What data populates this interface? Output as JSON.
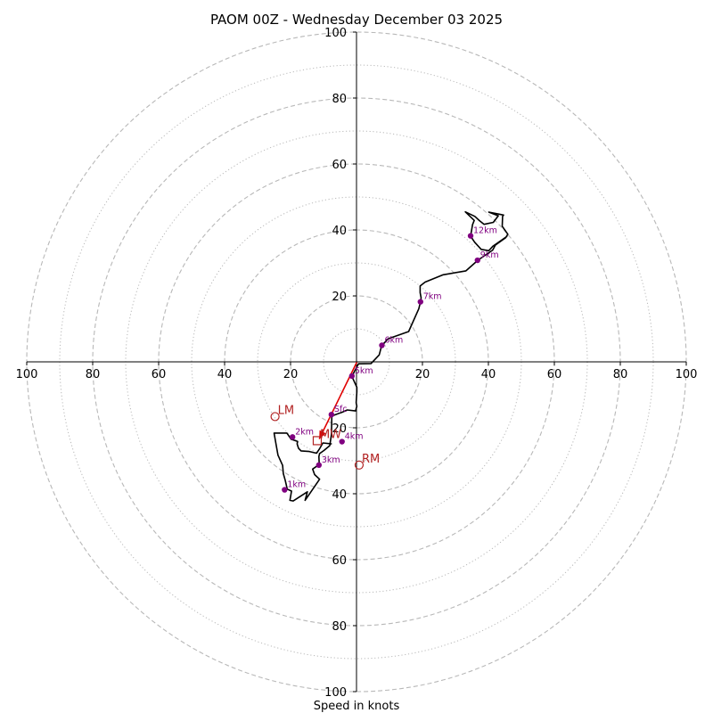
{
  "chart_data": {
    "type": "hodograph",
    "title": "PAOM 00Z - Wednesday December 03 2025",
    "xlabel": "Speed in knots",
    "max_speed": 100,
    "ring_dashed": [
      20,
      40,
      60,
      80,
      100
    ],
    "ring_dotted": [
      10,
      30,
      50,
      70,
      90
    ],
    "x_ticks": [
      {
        "label": "100",
        "value": -100
      },
      {
        "label": "80",
        "value": -80
      },
      {
        "label": "60",
        "value": -60
      },
      {
        "label": "40",
        "value": -40
      },
      {
        "label": "20",
        "value": -20
      },
      {
        "label": "20",
        "value": 20
      },
      {
        "label": "40",
        "value": 40
      },
      {
        "label": "60",
        "value": 60
      },
      {
        "label": "80",
        "value": 80
      },
      {
        "label": "100",
        "value": 100
      }
    ],
    "y_ticks": [
      {
        "label": "100",
        "value": 100
      },
      {
        "label": "80",
        "value": 80
      },
      {
        "label": "60",
        "value": 60
      },
      {
        "label": "40",
        "value": 40
      },
      {
        "label": "20",
        "value": 20
      },
      {
        "label": "20",
        "value": -20
      },
      {
        "label": "40",
        "value": -40
      },
      {
        "label": "60",
        "value": -60
      },
      {
        "label": "80",
        "value": -80
      },
      {
        "label": "100",
        "value": -100
      }
    ],
    "hodograph_trace": [
      [
        -7.5,
        -24.9
      ],
      [
        -10.2,
        -24.6
      ],
      [
        -11.3,
        -26.5
      ],
      [
        -12.1,
        -27.7
      ],
      [
        -14.3,
        -27.2
      ],
      [
        -16.8,
        -27.0
      ],
      [
        -17.6,
        -26.2
      ],
      [
        -18.0,
        -24.9
      ],
      [
        -17.9,
        -24.1
      ],
      [
        -19.8,
        -23.5
      ],
      [
        -21.1,
        -21.6
      ],
      [
        -25.0,
        -21.6
      ],
      [
        -23.8,
        -28.3
      ],
      [
        -22.4,
        -31.4
      ],
      [
        -22.2,
        -33.9
      ],
      [
        -21.6,
        -36.0
      ],
      [
        -21.0,
        -38.6
      ],
      [
        -19.7,
        -39.2
      ],
      [
        -20.2,
        -42.0
      ],
      [
        -19.2,
        -42.2
      ],
      [
        -14.9,
        -39.4
      ],
      [
        -15.6,
        -42.0
      ],
      [
        -11.2,
        -35.6
      ],
      [
        -12.7,
        -34.2
      ],
      [
        -13.3,
        -32.5
      ],
      [
        -11.3,
        -31.1
      ],
      [
        -11.4,
        -28.7
      ],
      [
        -11.2,
        -27.8
      ],
      [
        -9.9,
        -26.9
      ],
      [
        -8.1,
        -25.4
      ],
      [
        -7.6,
        -22.0
      ],
      [
        -7.5,
        -16.4
      ],
      [
        -4.4,
        -15.3
      ],
      [
        -2.8,
        -14.6
      ],
      [
        -0.3,
        -14.9
      ],
      [
        0.1,
        -13.5
      ],
      [
        -0.1,
        -12.4
      ],
      [
        0.1,
        -9.1
      ],
      [
        0.1,
        -7.7
      ],
      [
        -1.4,
        -4.4
      ],
      [
        0.6,
        -0.6
      ],
      [
        4.4,
        -0.5
      ],
      [
        6.9,
        2.1
      ],
      [
        7.6,
        4.8
      ],
      [
        9.6,
        7.0
      ],
      [
        15.8,
        9.2
      ],
      [
        18.9,
        16.1
      ],
      [
        19.4,
        18.2
      ],
      [
        19.6,
        19.4
      ],
      [
        19.3,
        21.0
      ],
      [
        19.3,
        23.0
      ],
      [
        20.8,
        24.2
      ],
      [
        26.3,
        26.4
      ],
      [
        33.2,
        27.6
      ],
      [
        36.8,
        30.8
      ],
      [
        41.3,
        33.9
      ],
      [
        42.1,
        35.4
      ],
      [
        45.2,
        37.6
      ],
      [
        45.9,
        38.7
      ],
      [
        44.2,
        41.1
      ],
      [
        44.3,
        44.1
      ],
      [
        44.6,
        44.5
      ],
      [
        43.1,
        44.8
      ],
      [
        40.1,
        45.4
      ],
      [
        43.0,
        44.3
      ],
      [
        41.5,
        42.3
      ],
      [
        38.7,
        41.7
      ],
      [
        37.3,
        42.8
      ],
      [
        35.9,
        44.1
      ],
      [
        33.0,
        45.5
      ],
      [
        35.7,
        42.9
      ],
      [
        35.2,
        41.6
      ],
      [
        34.6,
        38.1
      ],
      [
        35.8,
        36.3
      ],
      [
        37.8,
        34.1
      ],
      [
        40.1,
        33.7
      ],
      [
        41.4,
        35.1
      ],
      [
        45.7,
        38.1
      ]
    ],
    "height_markers": [
      {
        "label": "Sfc",
        "u": -7.6,
        "v": -16.0
      },
      {
        "label": "1km",
        "u": -21.8,
        "v": -38.8
      },
      {
        "label": "2km",
        "u": -19.4,
        "v": -22.8
      },
      {
        "label": "3km",
        "u": -11.4,
        "v": -31.3
      },
      {
        "label": "4km",
        "u": -4.4,
        "v": -24.2
      },
      {
        "label": "5km",
        "u": -1.4,
        "v": -4.3
      },
      {
        "label": "6km",
        "u": 7.7,
        "v": 5.0
      },
      {
        "label": "7km",
        "u": 19.4,
        "v": 18.2
      },
      {
        "label": "9km",
        "u": 36.7,
        "v": 30.8
      },
      {
        "label": "12km",
        "u": 34.6,
        "v": 38.2
      }
    ],
    "storm_motion": [
      {
        "label": "LM",
        "u": -24.7,
        "v": -16.6
      },
      {
        "label": "RM",
        "u": 0.8,
        "v": -31.3
      },
      {
        "label": "MW",
        "u": -11.9,
        "v": -23.9
      }
    ],
    "shear_vector": {
      "from": [
        0.1,
        -0.1
      ],
      "to": [
        -11.3,
        -23.4
      ]
    },
    "colors": {
      "trace": "#000000",
      "markers": "#800080",
      "storm": "#b22222",
      "shear": "#e00000",
      "grid": "#b8b8b8"
    }
  }
}
